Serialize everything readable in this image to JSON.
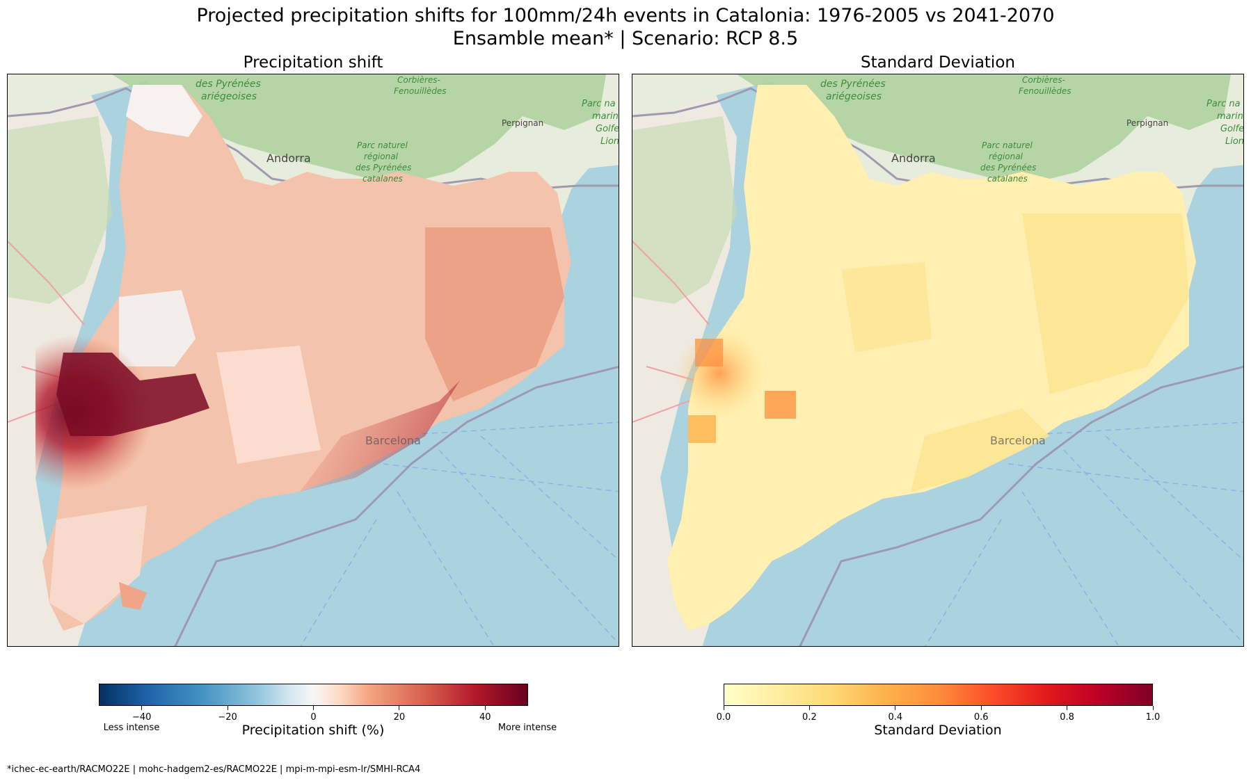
{
  "title": {
    "line1": "Projected precipitation shifts for 100mm/24h events in Catalonia: 1976-2005 vs 2041-2070",
    "line2": "Ensamble mean* | Scenario: RCP 8.5"
  },
  "panels": {
    "left": {
      "title": "Precipitation shift"
    },
    "right": {
      "title": "Standard Deviation"
    }
  },
  "map_labels": {
    "pyrenees_ariegeoises": [
      "des Pyrénées",
      "ariégeoises"
    ],
    "corbieres": [
      "Corbières-",
      "Fenouillèdes"
    ],
    "perpignan": "Perpignan",
    "andorra": "Andorra",
    "parc_pyrenees_catalanes": [
      "Parc naturel",
      "régional",
      "des Pyrénées",
      "catalanes"
    ],
    "parc_marin": [
      "Parc na",
      "marin",
      "Golfe",
      "Lion"
    ],
    "barcelona": "Barcelona"
  },
  "colorbars": {
    "left": {
      "label": "Precipitation shift (%)",
      "ticks": [
        "−40",
        "−20",
        "0",
        "20",
        "40"
      ],
      "range": [
        -50,
        50
      ],
      "tick_values": [
        -40,
        -20,
        0,
        20,
        40
      ],
      "less_label": "Less intense",
      "more_label": "More intense",
      "colormap": "RdBu_r"
    },
    "right": {
      "label": "Standard Deviation",
      "ticks": [
        "0.0",
        "0.2",
        "0.4",
        "0.6",
        "0.8",
        "1.0"
      ],
      "range": [
        0,
        1
      ],
      "tick_values": [
        0,
        0.2,
        0.4,
        0.6,
        0.8,
        1.0
      ],
      "colormap": "YlOrRd"
    }
  },
  "colors": {
    "sea": "#aad3df",
    "land": "#e8ecdc",
    "forest": "#add19e",
    "shift_low": "#fbe3d6",
    "shift_mid": "#f0a488",
    "shift_high": "#b2182b",
    "shift_extreme": "#67001f",
    "sd_low": "#ffefb0",
    "sd_mid": "#fed976",
    "sd_high": "#fd8d3c"
  },
  "footnote": "*ichec-ec-earth/RACMO22E | mohc-hadgem2-es/RACMO22E | mpi-m-mpi-esm-lr/SMHI-RCA4"
}
